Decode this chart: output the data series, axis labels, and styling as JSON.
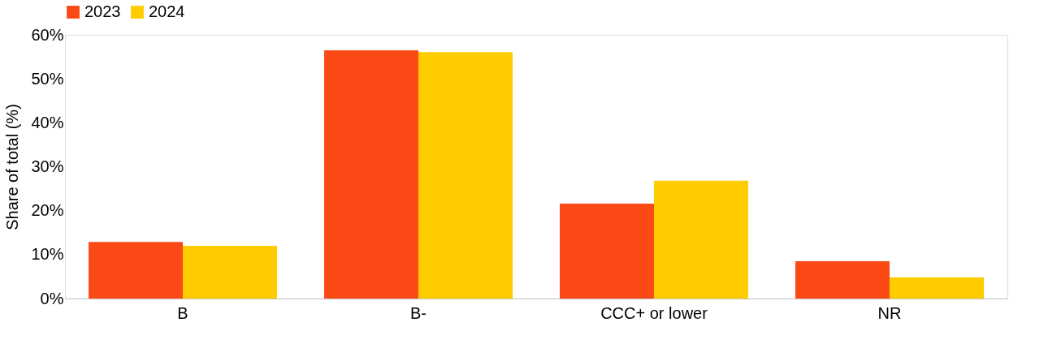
{
  "chart_data": {
    "type": "bar",
    "ylabel": "Share of total (%)",
    "categories": [
      "B",
      "B-",
      "CCC+ or lower",
      "NR"
    ],
    "series": [
      {
        "name": "2023",
        "color": "#fc4a16",
        "values": [
          12.9,
          56.5,
          21.6,
          8.5
        ]
      },
      {
        "name": "2024",
        "color": "#ffcc00",
        "values": [
          12.0,
          56.1,
          26.8,
          4.8
        ]
      }
    ],
    "ylim": [
      0,
      60
    ],
    "yticks": [
      {
        "value": 0,
        "label": "0%"
      },
      {
        "value": 10,
        "label": "10%"
      },
      {
        "value": 20,
        "label": "20%"
      },
      {
        "value": 30,
        "label": "30%"
      },
      {
        "value": 40,
        "label": "40%"
      },
      {
        "value": 50,
        "label": "50%"
      },
      {
        "value": 60,
        "label": "60%"
      }
    ],
    "grid": false,
    "legend": "top"
  }
}
